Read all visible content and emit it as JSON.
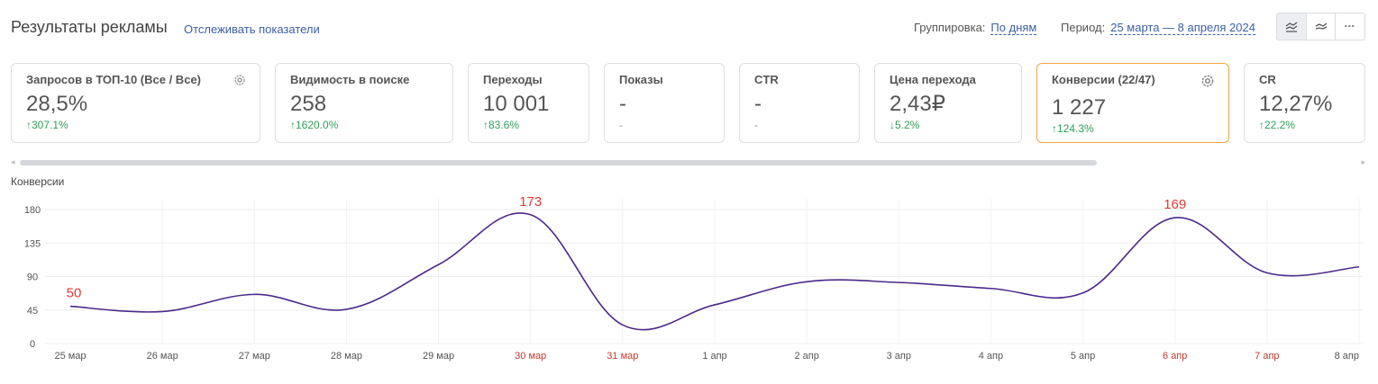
{
  "header": {
    "title": "Результаты рекламы",
    "track_link": "Отслеживать показатели",
    "grouping_label": "Группировка:",
    "grouping_value": "По дням",
    "period_label": "Период:",
    "period_value": "25 марта — 8 апреля 2024"
  },
  "cards": [
    {
      "title": "Запросов в ТОП-10 (Все / Все)",
      "value": "28,5%",
      "delta": "307.1%",
      "direction": "up",
      "gear": true
    },
    {
      "title": "Видимость в поиске",
      "value": "258",
      "delta": "1620.0%",
      "direction": "up"
    },
    {
      "title": "Переходы",
      "value": "10 001",
      "delta": "83.6%",
      "direction": "up"
    },
    {
      "title": "Показы",
      "value": "-",
      "delta": "-",
      "direction": "none"
    },
    {
      "title": "CTR",
      "value": "-",
      "delta": "-",
      "direction": "none"
    },
    {
      "title": "Цена перехода",
      "value": "2,43₽",
      "delta": "5.2%",
      "direction": "down"
    },
    {
      "title": "Конверсии (22/47)",
      "value": "1 227",
      "delta": "124.3%",
      "direction": "up",
      "gear": true,
      "selected": true
    },
    {
      "title": "CR",
      "value": "12,27%",
      "delta": "22.2%",
      "direction": "up"
    }
  ],
  "colors": {
    "line": "#4b2a8a",
    "annotation": "#e53935",
    "weekend": "#c0392b",
    "delta": "#2f9e5a",
    "selected_border": "#f0a640"
  },
  "chart_data": {
    "type": "line",
    "ylabel": "Конверсии",
    "ylim": [
      0,
      180
    ],
    "yticks": [
      0,
      45,
      90,
      135,
      180
    ],
    "grid": true,
    "categories": [
      "25 мар",
      "26 мар",
      "27 мар",
      "28 мар",
      "29 мар",
      "30 мар",
      "31 мар",
      "1 апр",
      "2 апр",
      "3 апр",
      "4 апр",
      "5 апр",
      "6 апр",
      "7 апр",
      "8 апр"
    ],
    "highlighted_categories": [
      "30 мар",
      "31 мар",
      "6 апр",
      "7 апр"
    ],
    "series": [
      {
        "values": [
          50,
          43,
          66,
          46,
          106,
          173,
          25,
          52,
          83,
          82,
          74,
          68,
          169,
          95,
          103
        ]
      }
    ],
    "annotations": [
      {
        "index": 0,
        "text": "50"
      },
      {
        "index": 5,
        "text": "173"
      },
      {
        "index": 12,
        "text": "169"
      }
    ]
  }
}
